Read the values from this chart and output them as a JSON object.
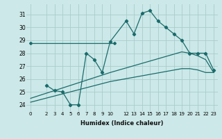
{
  "xlabel": "Humidex (Indice chaleur)",
  "background_color": "#cce8e8",
  "grid_color": "#aacccc",
  "line_color": "#1a6b6b",
  "xlim": [
    -0.5,
    23.5
  ],
  "ylim": [
    23.5,
    31.8
  ],
  "xticks": [
    0,
    2,
    3,
    4,
    5,
    6,
    7,
    8,
    9,
    10,
    12,
    13,
    14,
    15,
    16,
    17,
    18,
    19,
    20,
    21,
    22,
    23
  ],
  "yticks": [
    24,
    25,
    26,
    27,
    28,
    29,
    30,
    31
  ],
  "line1_x": [
    0,
    1,
    2,
    3,
    4,
    5,
    6,
    7,
    8,
    9,
    10,
    10.5
  ],
  "line1_y": [
    28.8,
    28.8,
    28.8,
    28.8,
    28.8,
    28.8,
    28.8,
    28.8,
    28.8,
    28.8,
    28.8,
    28.8
  ],
  "line2_x": [
    2,
    3,
    4,
    5,
    6,
    7,
    8,
    9,
    10,
    12,
    13,
    14,
    15,
    16,
    17,
    18,
    19,
    20,
    21,
    22,
    23
  ],
  "line2_y": [
    25.5,
    25.1,
    25.0,
    24.0,
    24.0,
    28.0,
    27.5,
    26.5,
    28.9,
    30.5,
    29.5,
    31.1,
    31.3,
    30.5,
    30.0,
    29.5,
    29.0,
    28.0,
    28.0,
    28.0,
    26.7
  ],
  "line3_x": [
    0,
    10,
    19,
    20,
    21,
    22,
    23
  ],
  "line3_y": [
    24.5,
    26.5,
    28.1,
    28.0,
    27.8,
    27.5,
    26.5
  ],
  "line4_x": [
    0,
    10,
    19,
    20,
    21,
    22,
    23
  ],
  "line4_y": [
    24.2,
    25.8,
    26.8,
    26.8,
    26.7,
    26.5,
    26.5
  ]
}
